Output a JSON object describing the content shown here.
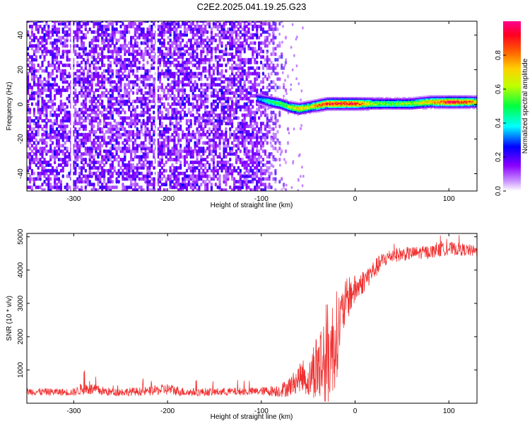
{
  "title": "C2E2.2025.041.19.25.G23",
  "chart_data": [
    {
      "type": "heatmap",
      "xlabel": "Height of straight line (km)",
      "ylabel": "Frequency (Hz)",
      "xlim": [
        -350,
        130
      ],
      "ylim": [
        -50,
        48
      ],
      "xticks": [
        -300,
        -200,
        -100,
        0,
        100
      ],
      "yticks": [
        -40,
        -20,
        0,
        20,
        40
      ],
      "colorbar": {
        "label": "Normalized spectral amplitude",
        "range": [
          0,
          1
        ],
        "ticks": [
          0.0,
          0.2,
          0.4,
          0.6,
          0.8
        ],
        "tick_labels": [
          "0.0",
          "0.2",
          "0.4",
          "0.6",
          "0.8"
        ],
        "colormap": [
          "#ffffff",
          "#a000ff",
          "#0000ff",
          "#00ffff",
          "#00ff00",
          "#ffff00",
          "#ff8000",
          "#ff0000",
          "#ff0080"
        ]
      },
      "noise_region": {
        "x": [
          -350,
          -95
        ],
        "level": 0.12
      },
      "signal_ridge": {
        "x": [
          -105,
          -90,
          -80,
          -70,
          -60,
          -50,
          -40,
          -30,
          -20,
          -10,
          0,
          20,
          40,
          60,
          80,
          100,
          120,
          130
        ],
        "freq": [
          3,
          1,
          0,
          -2,
          -3,
          -2,
          -1,
          0,
          0,
          0,
          0,
          0,
          0,
          0,
          1,
          1,
          1,
          1
        ],
        "level": [
          0.3,
          0.5,
          0.55,
          0.6,
          0.75,
          0.65,
          0.8,
          0.9,
          0.95,
          0.9,
          0.9,
          0.6,
          0.55,
          0.6,
          0.75,
          0.95,
          0.85,
          0.7
        ]
      }
    },
    {
      "type": "line",
      "xlabel": "Height of straight line (km)",
      "ylabel": "SNR (10 * v/v)",
      "xlim": [
        -350,
        130
      ],
      "ylim": [
        0,
        5100
      ],
      "xticks": [
        -300,
        -200,
        -100,
        0,
        100
      ],
      "yticks": [
        1000,
        2000,
        3000,
        4000,
        5000
      ],
      "series": [
        {
          "color": "#f03030",
          "x": [
            -350,
            -300,
            -290,
            -260,
            -220,
            -200,
            -180,
            -150,
            -100,
            -80,
            -70,
            -60,
            -55,
            -50,
            -45,
            -40,
            -35,
            -30,
            -25,
            -20,
            -15,
            -10,
            -5,
            0,
            10,
            20,
            30,
            40,
            60,
            80,
            100,
            120,
            130
          ],
          "y": [
            350,
            330,
            450,
            330,
            360,
            420,
            330,
            340,
            360,
            380,
            500,
            750,
            850,
            600,
            1000,
            1100,
            1200,
            1400,
            1600,
            2000,
            2600,
            3000,
            3300,
            3400,
            3700,
            4000,
            4300,
            4450,
            4500,
            4550,
            4650,
            4600,
            4550
          ],
          "noise": [
            110,
            110,
            200,
            120,
            130,
            180,
            120,
            120,
            120,
            200,
            300,
            400,
            500,
            450,
            800,
            1200,
            1500,
            1700,
            1500,
            1400,
            800,
            700,
            600,
            450,
            350,
            300,
            250,
            220,
            200,
            200,
            200,
            180,
            180
          ]
        }
      ]
    }
  ]
}
